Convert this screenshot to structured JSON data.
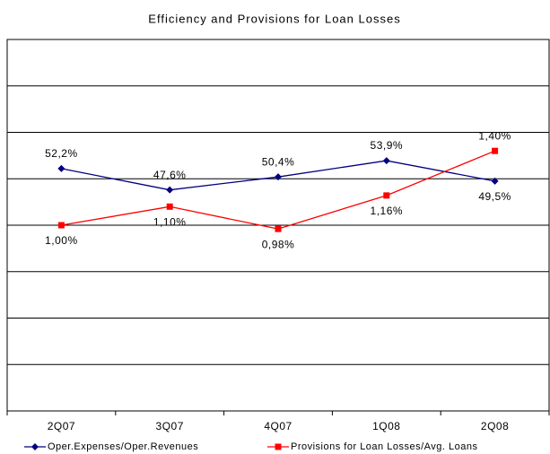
{
  "chart_data": {
    "type": "line",
    "title": "Efficiency and Provisions for Loan Losses",
    "categories": [
      "2Q07",
      "3Q07",
      "4Q07",
      "1Q08",
      "2Q08"
    ],
    "series": [
      {
        "name": "Oper.Expenses/Oper.Revenues",
        "color": "#000080",
        "marker": "diamond",
        "values": [
          52.2,
          47.6,
          50.4,
          53.9,
          49.5
        ],
        "value_labels": [
          "52,2%",
          "47,6%",
          "50,4%",
          "53,9%",
          "49,5%"
        ]
      },
      {
        "name": "Provisions for Loan Losses/Avg. Loans",
        "color": "#ff0000",
        "marker": "square",
        "axis": "y2",
        "values": [
          1.0,
          1.1,
          0.98,
          1.16,
          1.4
        ],
        "value_labels": [
          "1,00%",
          "1,10%",
          "0,98%",
          "1,16%",
          "1,40%"
        ]
      }
    ],
    "ylim": [
      0,
      80
    ],
    "yticks": [
      0,
      10,
      20,
      30,
      40,
      50,
      60,
      70,
      80
    ],
    "y2lim": [
      0,
      2
    ],
    "grid": true,
    "legend": "bottom"
  }
}
